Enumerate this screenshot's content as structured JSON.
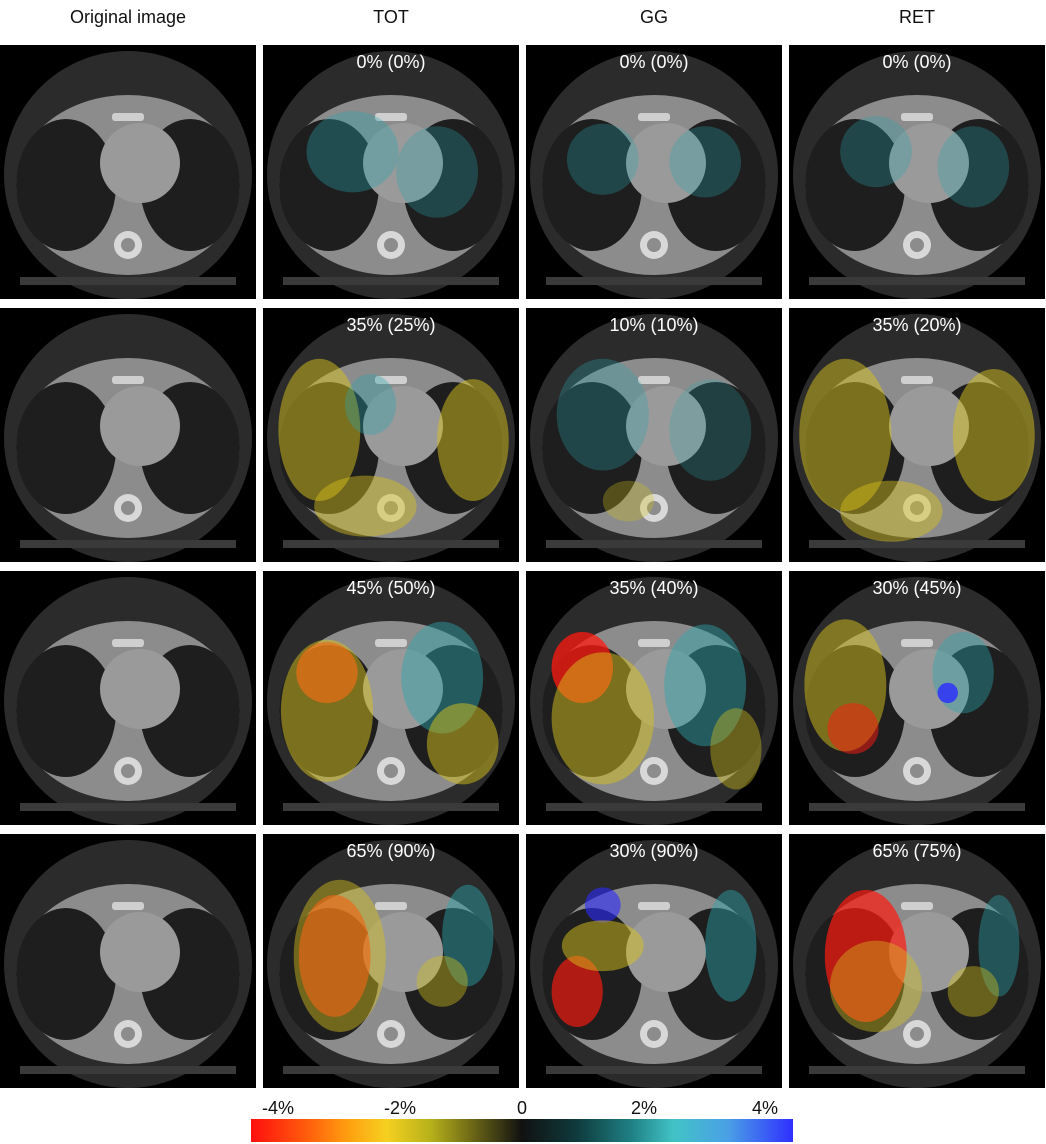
{
  "headers": [
    "Original image",
    "TOT",
    "GG",
    "RET"
  ],
  "rows": [
    {
      "tot": "0% (0%)",
      "gg": "0% (0%)",
      "ret": "0% (0%)"
    },
    {
      "tot": "35% (25%)",
      "gg": "10% (10%)",
      "ret": "35% (20%)"
    },
    {
      "tot": "45% (50%)",
      "gg": "35% (40%)",
      "ret": "30% (45%)"
    },
    {
      "tot": "65% (90%)",
      "gg": "30% (90%)",
      "ret": "65% (75%)"
    }
  ],
  "colorbar": {
    "ticks": [
      "-4%",
      "-2%",
      "0",
      "2%",
      "4%"
    ],
    "colors": {
      "negative": "#ff0f0f",
      "mid_negative": "#f5d020",
      "zero": "#111111",
      "mid_positive": "#42c3c6",
      "positive": "#2f2fff"
    }
  },
  "overlay_colors": {
    "none": "#000000",
    "cyan": "#2aa7b0",
    "yellow": "#d8c21c",
    "red": "#ff1a10",
    "blue": "#2b2bff"
  }
}
